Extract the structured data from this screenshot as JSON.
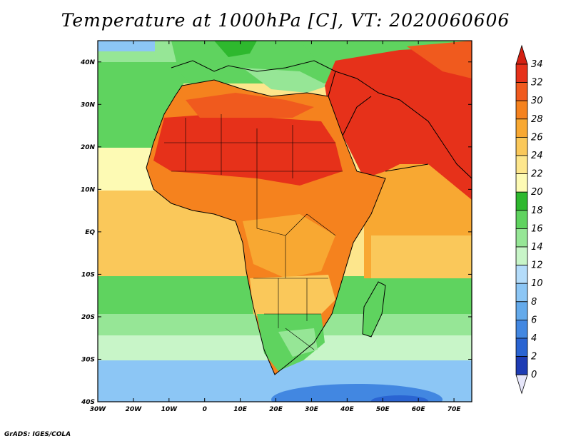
{
  "title": "Temperature at 1000hPa [C], VT: 2020060606",
  "credit": "GrADS: IGES/COLA",
  "axes": {
    "lon_labels": [
      "30W",
      "20W",
      "10W",
      "0",
      "10E",
      "20E",
      "30E",
      "40E",
      "50E",
      "60E",
      "70E"
    ],
    "lat_labels": [
      "40N",
      "30N",
      "20N",
      "10N",
      "EQ",
      "10S",
      "20S",
      "30S",
      "40S"
    ]
  },
  "colorbar": {
    "labels": [
      "34",
      "32",
      "30",
      "28",
      "26",
      "24",
      "22",
      "20",
      "18",
      "16",
      "14",
      "12",
      "10",
      "8",
      "6",
      "4",
      "2",
      "0"
    ],
    "colors": [
      "#e6311a",
      "#f05a1e",
      "#f5821e",
      "#f8a832",
      "#fac85a",
      "#fde68c",
      "#fdfab4",
      "#2eb82e",
      "#5fd35f",
      "#96e696",
      "#c8f5c8",
      "#b4dcfa",
      "#8cc6f5",
      "#64aaeb",
      "#4287e1",
      "#2a64d2",
      "#1e3cb4",
      "#0a1464"
    ]
  },
  "map": {
    "region": "Africa, Middle East, Mediterranean",
    "lon_range": [
      -30,
      75
    ],
    "lat_range": [
      -40,
      45
    ]
  }
}
